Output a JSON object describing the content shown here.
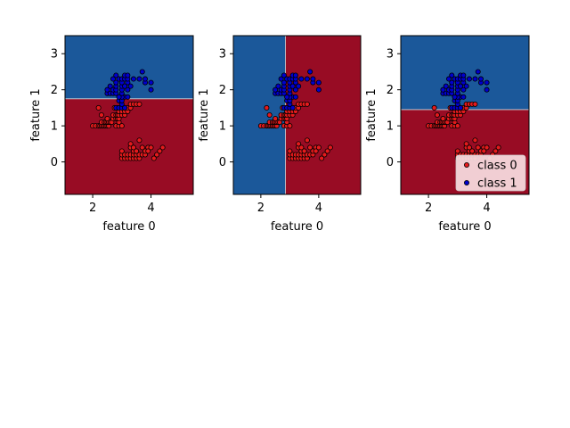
{
  "chart_data": [
    {
      "type": "scatter",
      "title": "",
      "xlabel": "feature 0",
      "ylabel": "feature 1",
      "xlim": [
        1.05,
        5.45
      ],
      "ylim": [
        -0.9,
        3.5
      ],
      "xticks": [
        "2",
        "4"
      ],
      "yticks": [
        "0",
        "1",
        "2",
        "3"
      ],
      "decision_boundary": {
        "feature": "feature 1",
        "threshold": 1.75,
        "above": "class 1",
        "below": "class 0"
      },
      "legend": false
    },
    {
      "type": "scatter",
      "title": "",
      "xlabel": "feature 0",
      "ylabel": "feature 1",
      "xlim": [
        1.05,
        5.45
      ],
      "ylim": [
        -0.9,
        3.5
      ],
      "xticks": [
        "2",
        "4"
      ],
      "yticks": [
        "0",
        "1",
        "2",
        "3"
      ],
      "decision_boundary": {
        "feature": "feature 0",
        "threshold": 2.85,
        "above": "class 0",
        "below": "class 1"
      },
      "legend": false
    },
    {
      "type": "scatter",
      "title": "",
      "xlabel": "feature 0",
      "ylabel": "feature 1",
      "xlim": [
        1.05,
        5.45
      ],
      "ylim": [
        -0.9,
        3.5
      ],
      "xticks": [
        "2",
        "4"
      ],
      "yticks": [
        "0",
        "1",
        "2",
        "3"
      ],
      "decision_boundary": {
        "feature": "feature 1",
        "threshold": 1.45,
        "above": "class 1",
        "below": "class 0"
      },
      "legend": true,
      "legend_position": "lower right"
    }
  ],
  "series": [
    {
      "name": "class 0",
      "color": "#e41a1c",
      "points": [
        [
          2.0,
          1.0
        ],
        [
          2.1,
          1.0
        ],
        [
          2.2,
          1.0
        ],
        [
          2.25,
          1.0
        ],
        [
          2.3,
          1.0
        ],
        [
          2.35,
          1.0
        ],
        [
          2.4,
          1.0
        ],
        [
          2.45,
          1.0
        ],
        [
          2.5,
          1.0
        ],
        [
          2.55,
          1.0
        ],
        [
          2.3,
          1.1
        ],
        [
          2.4,
          1.1
        ],
        [
          2.45,
          1.1
        ],
        [
          2.5,
          1.1
        ],
        [
          2.55,
          1.1
        ],
        [
          2.6,
          1.1
        ],
        [
          2.65,
          1.1
        ],
        [
          2.8,
          1.0
        ],
        [
          2.9,
          1.0
        ],
        [
          2.9,
          1.1
        ],
        [
          3.0,
          1.0
        ],
        [
          2.7,
          1.2
        ],
        [
          2.8,
          1.2
        ],
        [
          2.85,
          1.2
        ],
        [
          2.9,
          1.2
        ],
        [
          2.7,
          1.3
        ],
        [
          2.8,
          1.3
        ],
        [
          2.85,
          1.3
        ],
        [
          2.9,
          1.3
        ],
        [
          3.0,
          1.3
        ],
        [
          3.1,
          1.3
        ],
        [
          2.9,
          1.4
        ],
        [
          3.0,
          1.4
        ],
        [
          3.1,
          1.4
        ],
        [
          3.2,
          1.4
        ],
        [
          2.2,
          1.5
        ],
        [
          2.75,
          1.5
        ],
        [
          2.85,
          1.5
        ],
        [
          3.0,
          1.5
        ],
        [
          3.1,
          1.5
        ],
        [
          3.2,
          1.5
        ],
        [
          3.3,
          1.5
        ],
        [
          2.3,
          1.3
        ],
        [
          2.5,
          1.2
        ],
        [
          3.3,
          1.6
        ],
        [
          3.4,
          1.6
        ],
        [
          3.5,
          1.6
        ],
        [
          3.6,
          1.6
        ],
        [
          3.0,
          0.1
        ],
        [
          3.1,
          0.1
        ],
        [
          3.2,
          0.1
        ],
        [
          3.3,
          0.1
        ],
        [
          3.4,
          0.1
        ],
        [
          3.5,
          0.1
        ],
        [
          3.6,
          0.1
        ],
        [
          3.0,
          0.2
        ],
        [
          3.1,
          0.2
        ],
        [
          3.2,
          0.2
        ],
        [
          3.3,
          0.2
        ],
        [
          3.4,
          0.2
        ],
        [
          3.5,
          0.2
        ],
        [
          3.6,
          0.2
        ],
        [
          3.7,
          0.2
        ],
        [
          3.8,
          0.2
        ],
        [
          3.0,
          0.3
        ],
        [
          3.4,
          0.3
        ],
        [
          3.5,
          0.3
        ],
        [
          3.8,
          0.3
        ],
        [
          3.3,
          0.4
        ],
        [
          3.4,
          0.4
        ],
        [
          3.7,
          0.4
        ],
        [
          3.9,
          0.4
        ],
        [
          4.0,
          0.4
        ],
        [
          4.4,
          0.4
        ],
        [
          3.3,
          0.5
        ],
        [
          3.6,
          0.6
        ],
        [
          3.5,
          0.3
        ],
        [
          4.1,
          0.1
        ],
        [
          4.2,
          0.2
        ],
        [
          4.3,
          0.3
        ],
        [
          3.9,
          0.3
        ]
      ]
    },
    {
      "name": "class 1",
      "color": "#0000cc",
      "points": [
        [
          2.8,
          1.5
        ],
        [
          2.9,
          1.5
        ],
        [
          3.0,
          1.5
        ],
        [
          3.1,
          1.5
        ],
        [
          3.0,
          1.6
        ],
        [
          2.9,
          1.7
        ],
        [
          3.0,
          1.7
        ],
        [
          3.1,
          1.8
        ],
        [
          3.0,
          1.8
        ],
        [
          3.2,
          1.8
        ],
        [
          2.9,
          1.8
        ],
        [
          2.5,
          1.9
        ],
        [
          2.6,
          1.9
        ],
        [
          2.7,
          1.9
        ],
        [
          2.8,
          1.9
        ],
        [
          3.0,
          1.9
        ],
        [
          2.5,
          2.0
        ],
        [
          2.7,
          2.0
        ],
        [
          2.8,
          2.0
        ],
        [
          3.0,
          2.0
        ],
        [
          3.2,
          2.0
        ],
        [
          4.0,
          2.0
        ],
        [
          2.6,
          2.1
        ],
        [
          2.8,
          2.1
        ],
        [
          3.0,
          2.1
        ],
        [
          3.1,
          2.1
        ],
        [
          3.3,
          2.1
        ],
        [
          2.8,
          2.2
        ],
        [
          3.0,
          2.2
        ],
        [
          3.2,
          2.2
        ],
        [
          3.8,
          2.2
        ],
        [
          4.0,
          2.2
        ],
        [
          2.7,
          2.3
        ],
        [
          2.9,
          2.3
        ],
        [
          3.0,
          2.3
        ],
        [
          3.1,
          2.3
        ],
        [
          3.2,
          2.3
        ],
        [
          3.4,
          2.3
        ],
        [
          3.6,
          2.3
        ],
        [
          3.8,
          2.3
        ],
        [
          2.8,
          2.4
        ],
        [
          3.1,
          2.4
        ],
        [
          3.2,
          2.4
        ],
        [
          3.7,
          2.5
        ]
      ]
    }
  ],
  "colors": {
    "region_class0": "#980c24",
    "region_class1": "#1b589a",
    "legend_bg": "#f8dfe3"
  }
}
